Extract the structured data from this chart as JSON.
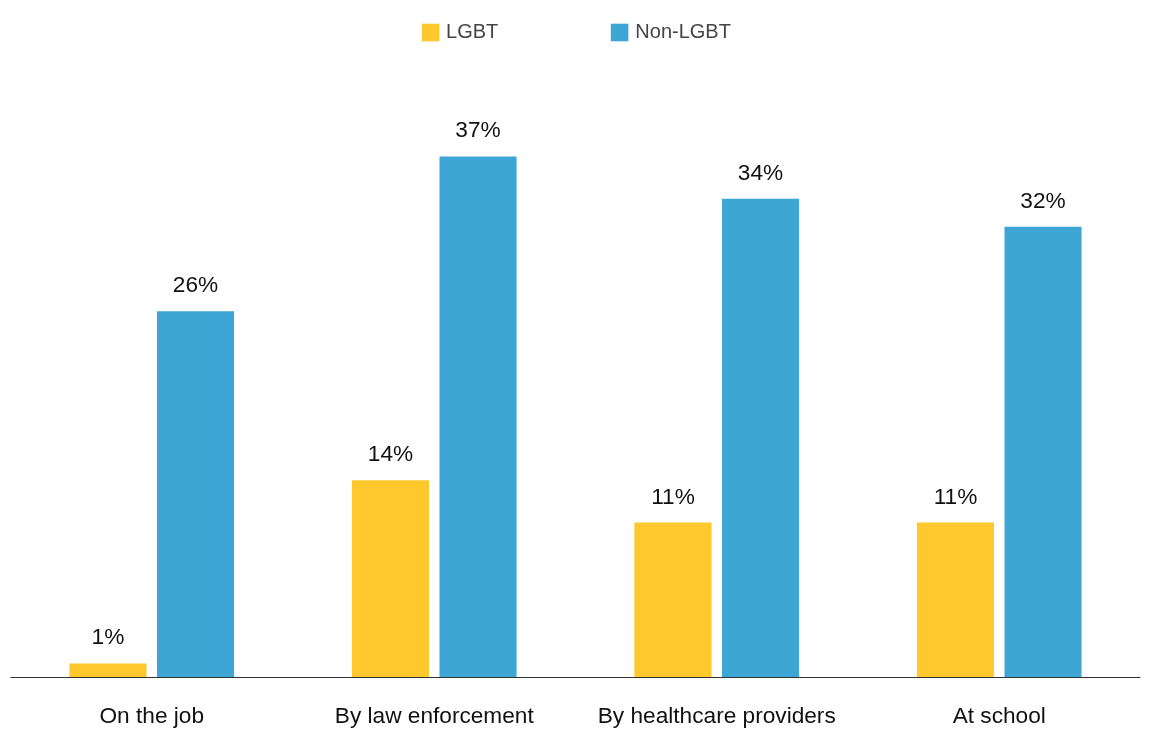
{
  "chart_data": {
    "type": "bar",
    "categories": [
      "On the job",
      "By law enforcement",
      "By healthcare providers",
      "At school"
    ],
    "series": [
      {
        "name": "LGBT",
        "color": "#ffc82c",
        "values": [
          1,
          14,
          11,
          11
        ],
        "value_labels": [
          "1%",
          "14%",
          "11%",
          "11%"
        ]
      },
      {
        "name": "Non-LGBT",
        "color": "#3ea6d5",
        "values": [
          26,
          37,
          34,
          32
        ],
        "value_labels": [
          "26%",
          "37%",
          "34%",
          "32%"
        ]
      }
    ],
    "legend": "top",
    "grid": false
  }
}
